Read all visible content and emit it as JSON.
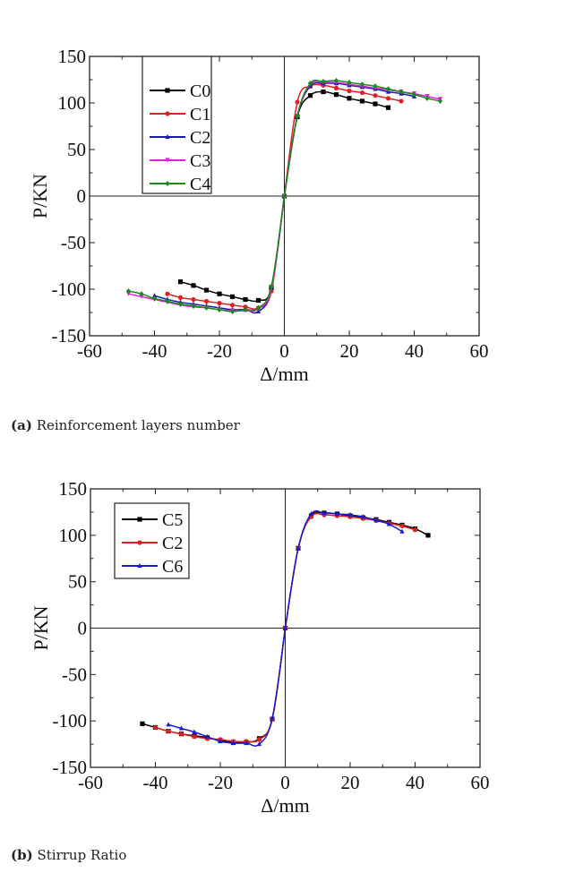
{
  "chart_data": [
    {
      "type": "line",
      "title": "",
      "caption_label": "(a)",
      "caption_text": "Reinforcement layers number",
      "xlabel": "Δ/mm",
      "ylabel": "P/KN",
      "xlim": [
        -60,
        60
      ],
      "ylim": [
        -150,
        150
      ],
      "xticks": [
        -60,
        -40,
        -20,
        0,
        20,
        40,
        60
      ],
      "yticks": [
        150,
        100,
        50,
        0,
        -50,
        -100,
        -150
      ],
      "grid": false,
      "legend_position": "upper-left",
      "series": [
        {
          "name": "C0",
          "color": "#000000",
          "marker": "square",
          "x": [
            -32,
            -28,
            -24,
            -20,
            -16,
            -12,
            -8,
            -4,
            0,
            4,
            8,
            12,
            16,
            20,
            24,
            28,
            32
          ],
          "y": [
            -92,
            -96,
            -101,
            -105,
            -108,
            -111,
            -112,
            -98,
            0,
            85,
            108,
            112,
            109,
            105,
            102,
            99,
            95
          ]
        },
        {
          "name": "C1",
          "color": "#e02020",
          "marker": "circle",
          "x": [
            -36,
            -32,
            -28,
            -24,
            -20,
            -16,
            -12,
            -8,
            -4,
            0,
            4,
            8,
            12,
            16,
            20,
            24,
            28,
            32,
            36
          ],
          "y": [
            -105,
            -109,
            -111,
            -113,
            -115,
            -117,
            -119,
            -120,
            -102,
            0,
            101,
            118,
            119,
            116,
            113,
            111,
            108,
            105,
            102
          ]
        },
        {
          "name": "C2",
          "color": "#1a1aa8",
          "marker": "triangle",
          "x": [
            -40,
            -36,
            -32,
            -28,
            -24,
            -20,
            -16,
            -12,
            -8,
            -4,
            0,
            4,
            8,
            12,
            16,
            20,
            24,
            28,
            32,
            36,
            40
          ],
          "y": [
            -107,
            -111,
            -114,
            -116,
            -118,
            -120,
            -122,
            -122,
            -124,
            -99,
            0,
            86,
            118,
            121,
            121,
            119,
            117,
            115,
            112,
            110,
            107
          ]
        },
        {
          "name": "C3",
          "color": "#e020e0",
          "marker": "triangle-down",
          "x": [
            -48,
            -44,
            -40,
            -36,
            -32,
            -28,
            -24,
            -20,
            -16,
            -12,
            -8,
            -4,
            0,
            4,
            8,
            12,
            16,
            20,
            24,
            28,
            32,
            36,
            40,
            44,
            48
          ],
          "y": [
            -105,
            -108,
            -111,
            -114,
            -117,
            -119,
            -120,
            -122,
            -123,
            -123,
            -121,
            -99,
            0,
            86,
            120,
            122,
            122,
            120,
            118,
            116,
            114,
            112,
            110,
            107,
            104
          ]
        },
        {
          "name": "C4",
          "color": "#1a8a1a",
          "marker": "diamond",
          "x": [
            -48,
            -44,
            -40,
            -36,
            -32,
            -28,
            -24,
            -20,
            -16,
            -12,
            -8,
            -4,
            0,
            4,
            8,
            12,
            16,
            20,
            24,
            28,
            32,
            36,
            40,
            44,
            48
          ],
          "y": [
            -102,
            -105,
            -110,
            -113,
            -116,
            -118,
            -120,
            -122,
            -124,
            -122,
            -120,
            -97,
            0,
            86,
            121,
            123,
            124,
            122,
            120,
            118,
            115,
            112,
            109,
            105,
            102
          ]
        }
      ]
    },
    {
      "type": "line",
      "title": "",
      "caption_label": "(b)",
      "caption_text": "Stirrup Ratio",
      "xlabel": "Δ/mm",
      "ylabel": "P/KN",
      "xlim": [
        -60,
        60
      ],
      "ylim": [
        -150,
        150
      ],
      "xticks": [
        -60,
        -40,
        -20,
        0,
        20,
        40,
        60
      ],
      "yticks": [
        150,
        100,
        50,
        0,
        -50,
        -100,
        -150
      ],
      "grid": false,
      "legend_position": "upper-left",
      "series": [
        {
          "name": "C5",
          "color": "#000000",
          "marker": "square",
          "x": [
            -44,
            -40,
            -36,
            -32,
            -28,
            -24,
            -20,
            -16,
            -12,
            -8,
            -4,
            0,
            4,
            8,
            12,
            16,
            20,
            24,
            28,
            32,
            36,
            40,
            44
          ],
          "y": [
            -103,
            -107,
            -111,
            -114,
            -116,
            -118,
            -121,
            -123,
            -123,
            -119,
            -98,
            0,
            86,
            121,
            124,
            123,
            121,
            119,
            117,
            114,
            111,
            107,
            100
          ]
        },
        {
          "name": "C2",
          "color": "#e02020",
          "marker": "circle",
          "x": [
            -40,
            -36,
            -32,
            -28,
            -24,
            -20,
            -16,
            -12,
            -8,
            -4,
            0,
            4,
            8,
            12,
            16,
            20,
            24,
            28,
            32,
            36,
            40
          ],
          "y": [
            -107,
            -111,
            -114,
            -117,
            -119,
            -120,
            -122,
            -122,
            -120,
            -98,
            0,
            86,
            120,
            122,
            121,
            120,
            118,
            116,
            113,
            110,
            106
          ]
        },
        {
          "name": "C6",
          "color": "#1a1ad0",
          "marker": "triangle",
          "x": [
            -36,
            -32,
            -28,
            -24,
            -20,
            -16,
            -12,
            -8,
            -4,
            0,
            4,
            8,
            12,
            16,
            20,
            24,
            28,
            32,
            36
          ],
          "y": [
            -104,
            -108,
            -112,
            -117,
            -122,
            -124,
            -124,
            -125,
            -97,
            0,
            86,
            123,
            124,
            123,
            122,
            120,
            116,
            112,
            104
          ]
        }
      ]
    }
  ]
}
